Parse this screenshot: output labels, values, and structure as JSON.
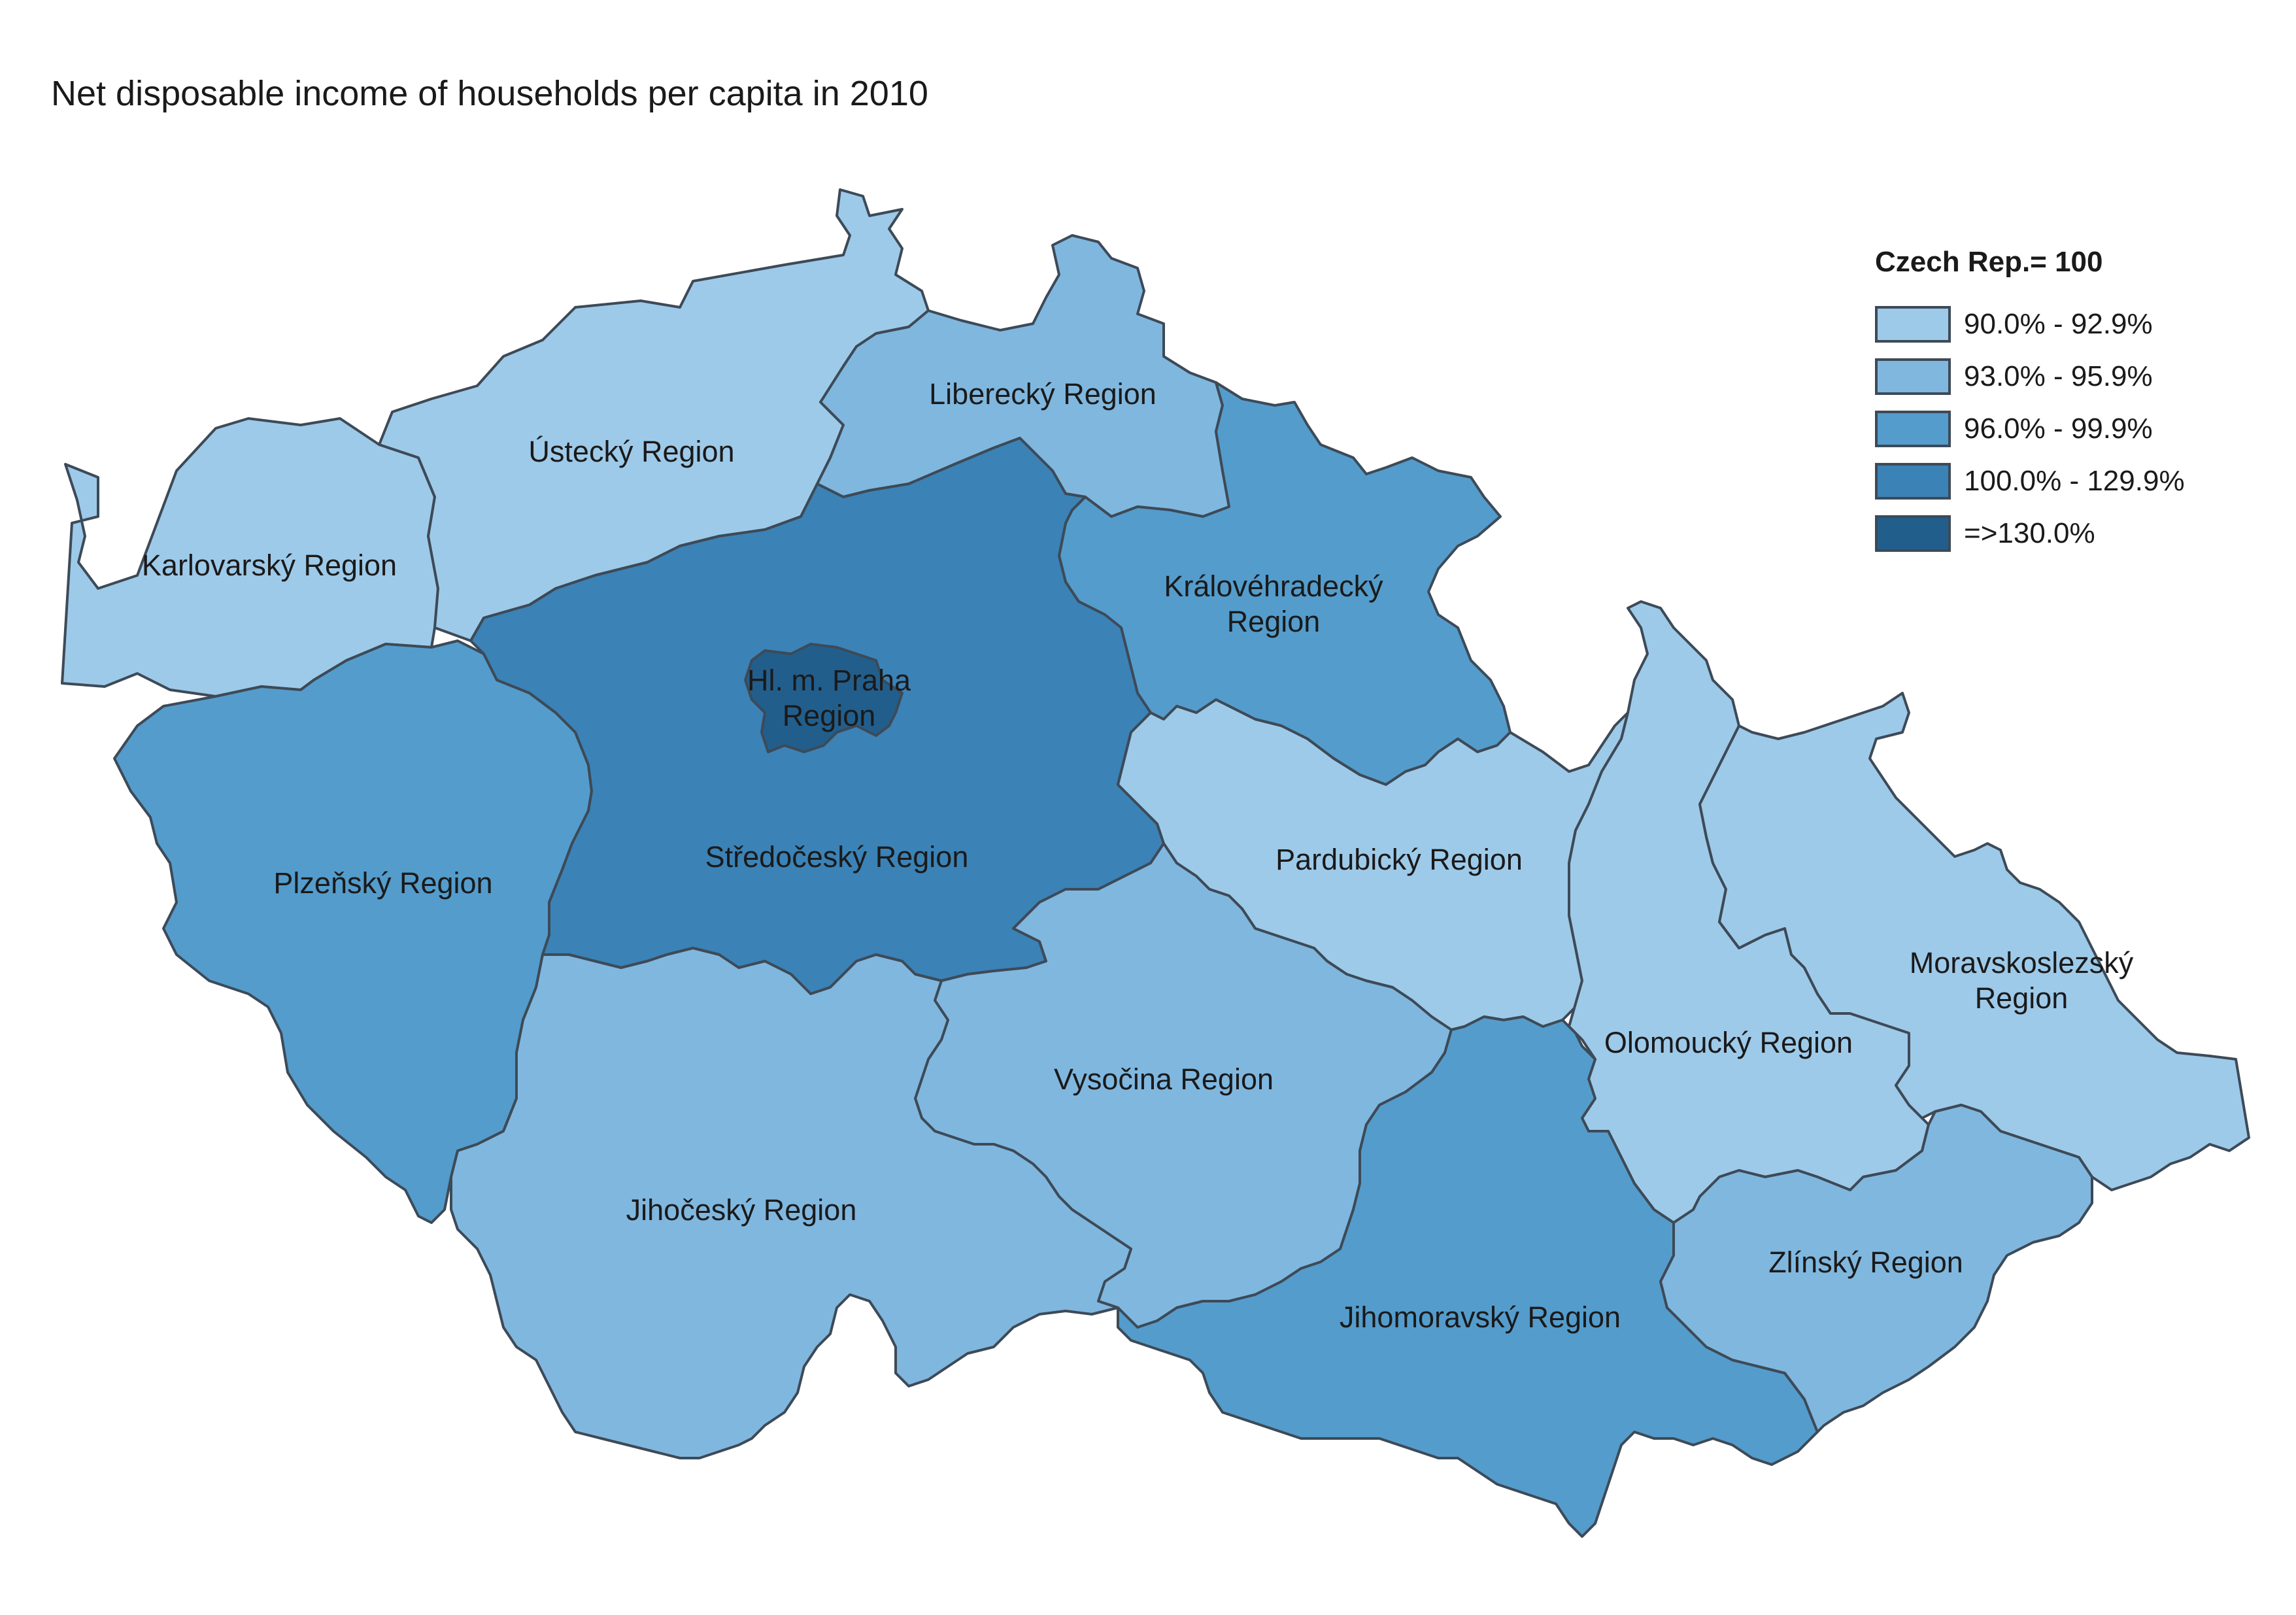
{
  "title": "Net disposable income of households per capita in 2010",
  "legend": {
    "title": "Czech Rep.= 100",
    "classes": [
      {
        "label": "90.0% - 92.9%",
        "color": "#9ecae9"
      },
      {
        "label": "93.0% - 95.9%",
        "color": "#80b7df"
      },
      {
        "label": "96.0% - 99.9%",
        "color": "#549ccc"
      },
      {
        "label": "100.0% - 129.9%",
        "color": "#3b82b6"
      },
      {
        "label": "=>130.0%",
        "color": "#225e8c"
      }
    ]
  },
  "regions": [
    {
      "id": "karlovarsky",
      "label": [
        "Karlovarský Region"
      ],
      "class": 0
    },
    {
      "id": "ustecky",
      "label": [
        "Ústecký Region"
      ],
      "class": 0
    },
    {
      "id": "liberecky",
      "label": [
        "Liberecký Region"
      ],
      "class": 1
    },
    {
      "id": "kralovehradecky",
      "label": [
        "Královéhradecký",
        "Region"
      ],
      "class": 2
    },
    {
      "id": "plzensky",
      "label": [
        "Plzeňský Region"
      ],
      "class": 2
    },
    {
      "id": "stredocesky",
      "label": [
        "Středočeský Region"
      ],
      "class": 3
    },
    {
      "id": "praha",
      "label": [
        "Hl. m. Praha",
        "Region"
      ],
      "class": 4
    },
    {
      "id": "pardubicky",
      "label": [
        "Pardubický Region"
      ],
      "class": 0
    },
    {
      "id": "olomoucky",
      "label": [
        "Olomoucký Region"
      ],
      "class": 0
    },
    {
      "id": "moravskoslezsky",
      "label": [
        "Moravskoslezský",
        "Region"
      ],
      "class": 0
    },
    {
      "id": "vysocina",
      "label": [
        "Vysočina Region"
      ],
      "class": 1
    },
    {
      "id": "jihocesky",
      "label": [
        "Jihočeský Region"
      ],
      "class": 1
    },
    {
      "id": "jihomoravsky",
      "label": [
        "Jihomoravský Region"
      ],
      "class": 2
    },
    {
      "id": "zlinsky",
      "label": [
        "Zlínský Region"
      ],
      "class": 1
    }
  ]
}
